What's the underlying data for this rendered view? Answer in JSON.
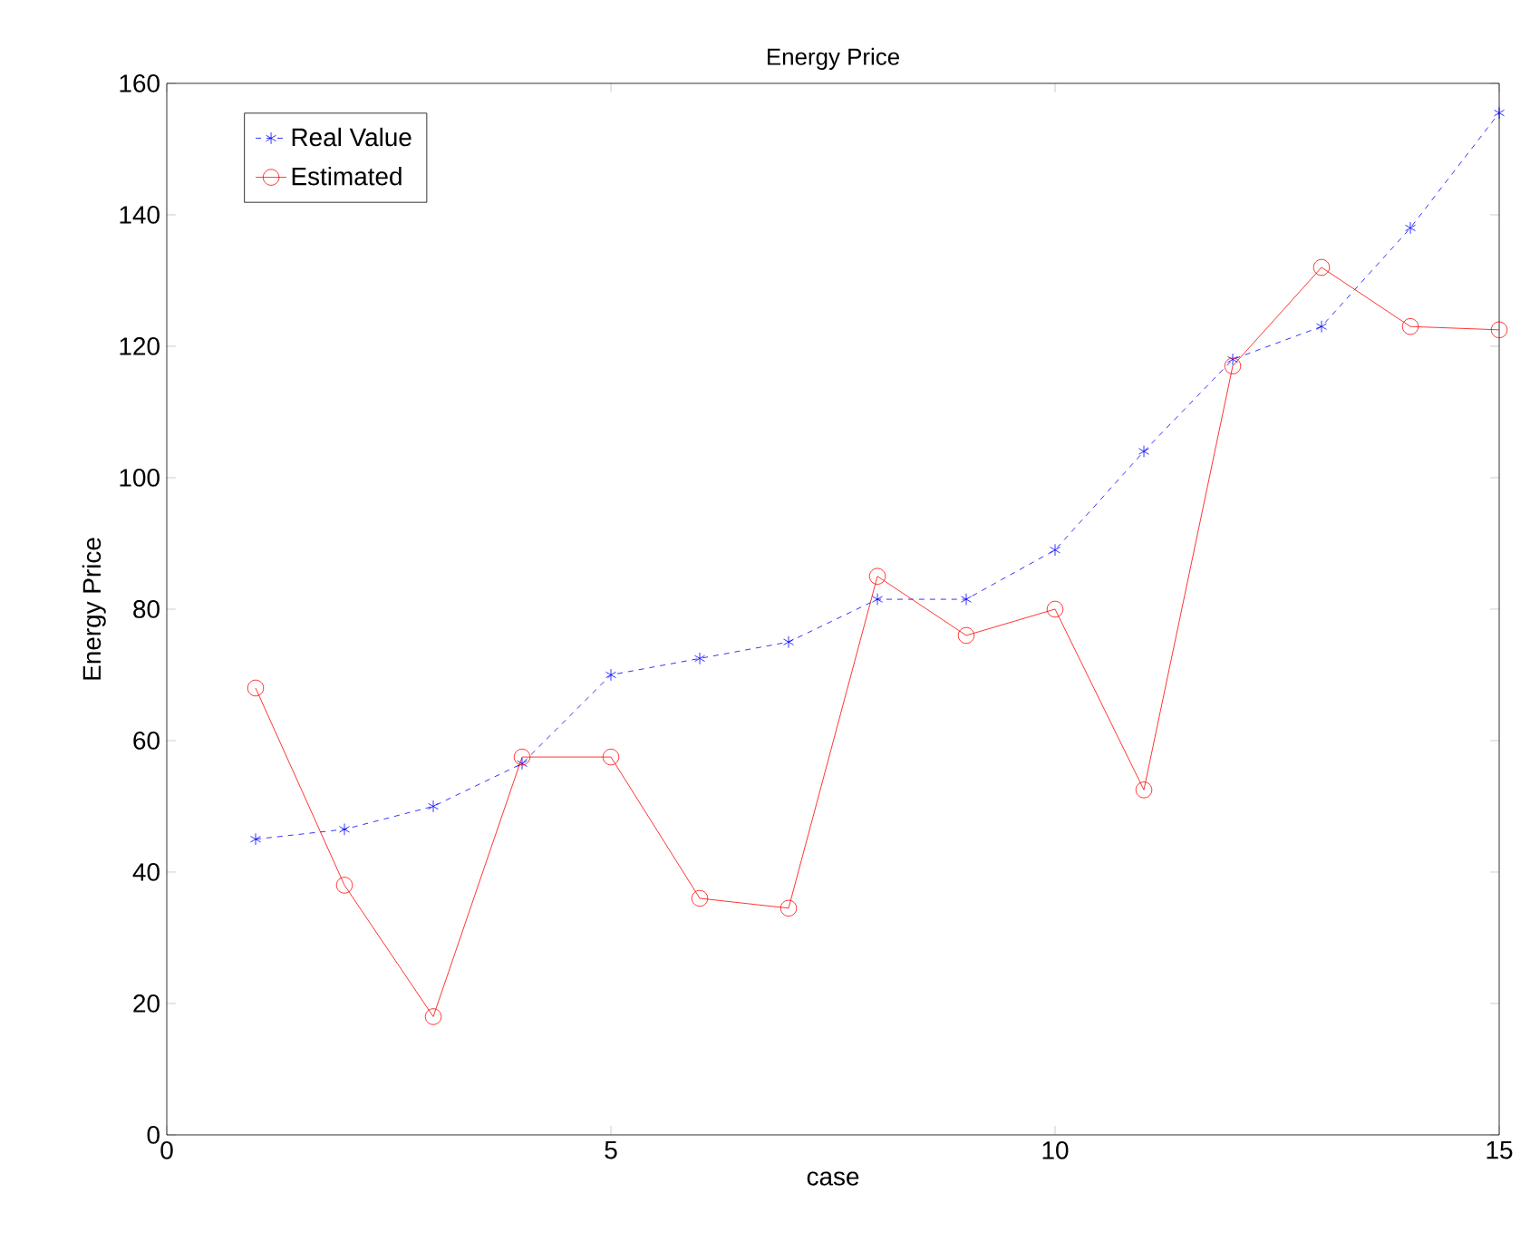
{
  "chart_data": {
    "type": "line",
    "title": "Energy Price",
    "xlabel": "case",
    "ylabel": "Energy Price",
    "x": [
      1,
      2,
      3,
      4,
      5,
      6,
      7,
      8,
      9,
      10,
      11,
      12,
      13,
      14,
      15
    ],
    "series": [
      {
        "name": "Real Value",
        "color": "#0000ff",
        "marker": "cross",
        "line_style": "dashed",
        "values": [
          45,
          46.5,
          50,
          56.5,
          70,
          72.5,
          75,
          81.5,
          81.5,
          89,
          104,
          118,
          123,
          138,
          155.5
        ]
      },
      {
        "name": "Estimated",
        "color": "#ff0000",
        "marker": "circle",
        "line_style": "solid",
        "values": [
          68,
          38,
          18,
          57.5,
          57.5,
          36,
          34.5,
          85,
          76,
          80,
          52.5,
          117,
          132,
          123,
          122.5
        ]
      }
    ],
    "xlim": [
      0,
      15
    ],
    "ylim": [
      0,
      160
    ],
    "xticks": [
      0,
      5,
      10,
      15
    ],
    "yticks": [
      0,
      20,
      40,
      60,
      80,
      100,
      120,
      140,
      160
    ],
    "grid": false,
    "legend": "top left"
  }
}
